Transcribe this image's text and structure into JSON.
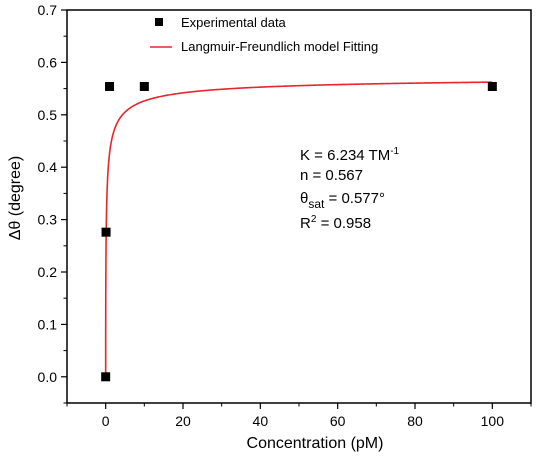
{
  "chart_data": {
    "type": "scatter",
    "title": "",
    "xlabel": "Concentration (pM)",
    "ylabel": "Δθ (degree)",
    "xlim": [
      -10,
      110
    ],
    "ylim": [
      -0.05,
      0.7
    ],
    "x_ticks": [
      0,
      20,
      40,
      60,
      80,
      100
    ],
    "y_ticks": [
      0.0,
      0.1,
      0.2,
      0.3,
      0.4,
      0.5,
      0.6,
      0.7
    ],
    "x_tick_labels": [
      "0",
      "20",
      "40",
      "60",
      "80",
      "100"
    ],
    "y_tick_labels": [
      "0.0",
      "0.1",
      "0.2",
      "0.3",
      "0.4",
      "0.5",
      "0.6",
      "0.7"
    ],
    "grid": false,
    "legend_position": "top-left",
    "series": [
      {
        "name": "Experimental data",
        "kind": "scatter",
        "marker": "square",
        "color": "#000000",
        "x": [
          0,
          0.1,
          1,
          10,
          100
        ],
        "y": [
          0.0,
          0.276,
          0.554,
          0.554,
          0.554
        ]
      },
      {
        "name": "Langmuir-Freundlich model Fitting",
        "kind": "line",
        "color": "#e8262a",
        "model": {
          "K": 6.234,
          "n": 0.567,
          "theta_sat": 0.577
        }
      }
    ],
    "annotations": {
      "k_prefix": "K = 6.234 TM",
      "k_exp": "-1",
      "n_line": "n =  0.567",
      "theta_sym": "θ",
      "theta_sub": "sat",
      "theta_val": " = 0.577°",
      "r_prefix": "R",
      "r_exp": "2",
      "r_val": " =  0.958"
    }
  }
}
